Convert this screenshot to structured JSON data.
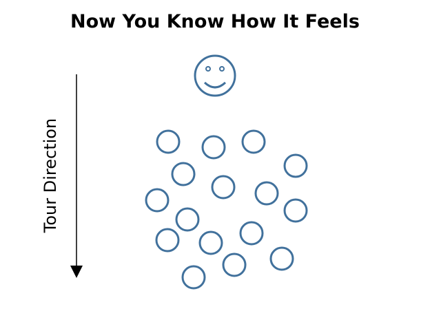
{
  "title": "Now You Know How It Feels",
  "direction_label": "Tour Direction"
}
